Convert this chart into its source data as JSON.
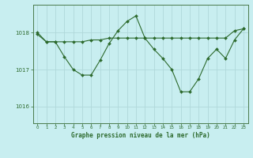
{
  "title": "Graphe pression niveau de la mer (hPa)",
  "bg_color": "#c8eef0",
  "grid_color": "#b0d8da",
  "line_color": "#2d6a2d",
  "xlim": [
    -0.5,
    23.5
  ],
  "ylim": [
    1015.55,
    1018.75
  ],
  "yticks": [
    1016,
    1017,
    1018
  ],
  "xticks": [
    0,
    1,
    2,
    3,
    4,
    5,
    6,
    7,
    8,
    9,
    10,
    11,
    12,
    13,
    14,
    15,
    16,
    17,
    18,
    19,
    20,
    21,
    22,
    23
  ],
  "series1_x": [
    0,
    1,
    2,
    3,
    4,
    5,
    6,
    7,
    8,
    9,
    10,
    11,
    12,
    13,
    14,
    15,
    16,
    17,
    18,
    19,
    20,
    21,
    22,
    23
  ],
  "series1_y": [
    1017.95,
    1017.75,
    1017.75,
    1017.75,
    1017.75,
    1017.75,
    1017.8,
    1017.8,
    1017.85,
    1017.85,
    1017.85,
    1017.85,
    1017.85,
    1017.85,
    1017.85,
    1017.85,
    1017.85,
    1017.85,
    1017.85,
    1017.85,
    1017.85,
    1017.85,
    1018.05,
    1018.1
  ],
  "series2_x": [
    0,
    1,
    2,
    3,
    4,
    5,
    6,
    7,
    8,
    9,
    10,
    11,
    12,
    13,
    14,
    15,
    16,
    17,
    18,
    19,
    20,
    21,
    22,
    23
  ],
  "series2_y": [
    1018.0,
    1017.75,
    1017.75,
    1017.35,
    1017.0,
    1016.85,
    1016.85,
    1017.25,
    1017.7,
    1018.05,
    1018.3,
    1018.45,
    1017.85,
    1017.55,
    1017.3,
    1017.0,
    1016.4,
    1016.4,
    1016.75,
    1017.3,
    1017.55,
    1017.3,
    1017.8,
    1018.1
  ]
}
